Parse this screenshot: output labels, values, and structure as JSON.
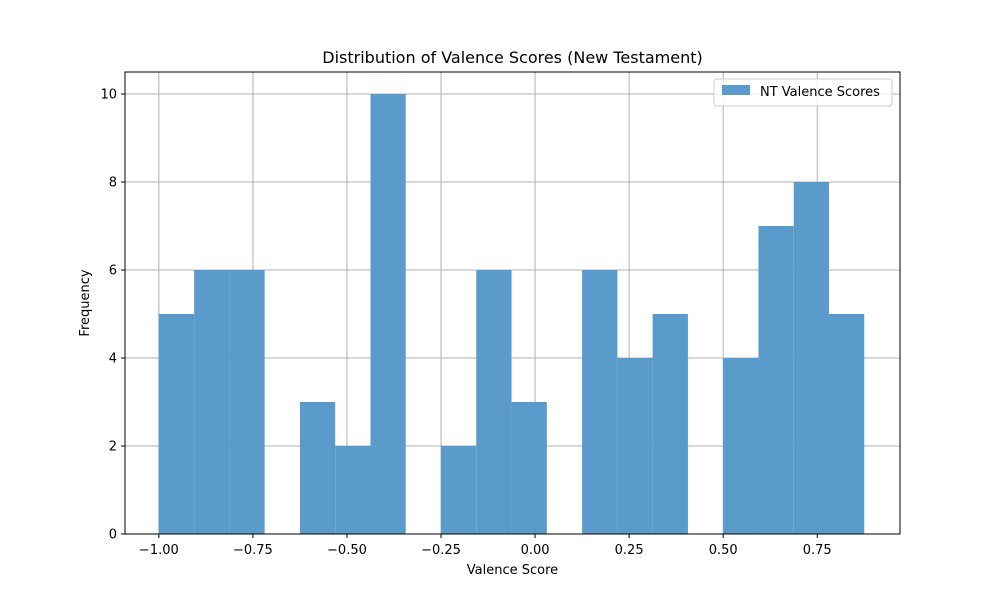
{
  "chart_data": {
    "type": "bar",
    "title": "Distribution of Valence Scores (New Testament)",
    "xlabel": "Valence Score",
    "ylabel": "Frequency",
    "xlim": [
      -1.09,
      0.97
    ],
    "ylim": [
      0,
      10.5
    ],
    "xticks": [
      -1.0,
      -0.75,
      -0.5,
      -0.25,
      0.0,
      0.25,
      0.5,
      0.75
    ],
    "xtick_labels": [
      "−1.00",
      "−0.75",
      "−0.50",
      "−0.25",
      "0.00",
      "0.25",
      "0.50",
      "0.75"
    ],
    "yticks": [
      0,
      2,
      4,
      6,
      8,
      10
    ],
    "ytick_labels": [
      "0",
      "2",
      "4",
      "6",
      "8",
      "10"
    ],
    "grid": true,
    "legend_position": "top-right",
    "bin_edges": [
      -1.0,
      -0.9063,
      -0.8125,
      -0.7188,
      -0.625,
      -0.5313,
      -0.4375,
      -0.3438,
      -0.25,
      -0.1563,
      -0.0625,
      0.0313,
      0.125,
      0.2188,
      0.3125,
      0.4063,
      0.5,
      0.5938,
      0.6875,
      0.7813,
      0.875
    ],
    "series": [
      {
        "name": "NT Valence Scores",
        "color": "#5b9bcb",
        "values": [
          5,
          6,
          6,
          0,
          3,
          2,
          10,
          0,
          2,
          6,
          3,
          0,
          6,
          4,
          5,
          0,
          4,
          7,
          8,
          5
        ]
      }
    ]
  }
}
